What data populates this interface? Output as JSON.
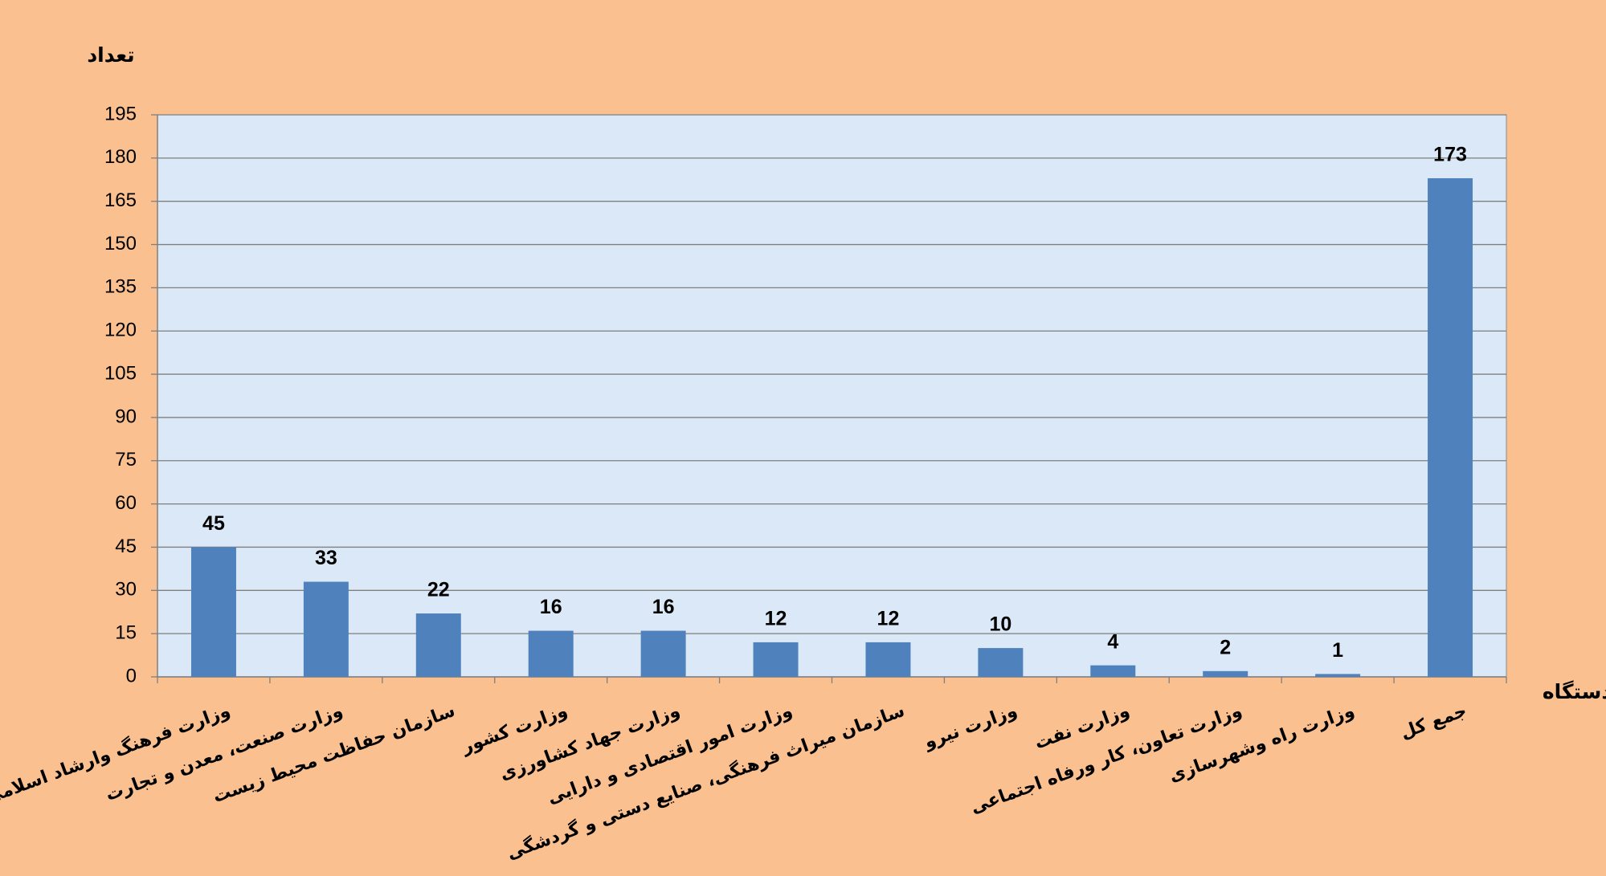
{
  "chart_data": {
    "type": "bar",
    "y_label": "تعداد",
    "x_label": "دستگاه",
    "categories": [
      "وزارت فرهنگ وارشاد اسلامی",
      "وزارت صنعت، معدن و تجارت",
      "سازمان حفاظت محیط زیست",
      "وزارت کشور",
      "وزارت جهاد کشاورزی",
      "وزارت امور اقتصادی و دارایی",
      "سازمان میراث فرهنگی، صنایع دستی و گردشگی",
      "وزارت نیرو",
      "وزارت نفت",
      "وزارت تعاون، کار ورفاه اجتماعی",
      "وزارت راه وشهرسازی",
      "جمع کل"
    ],
    "values": [
      45,
      33,
      22,
      16,
      16,
      12,
      12,
      10,
      4,
      2,
      1,
      173
    ],
    "color": "#4f81bd",
    "ylim": [
      0,
      195
    ],
    "yticks": [
      0,
      15,
      30,
      45,
      60,
      75,
      90,
      105,
      120,
      135,
      150,
      165,
      180,
      195
    ],
    "grid": true
  }
}
